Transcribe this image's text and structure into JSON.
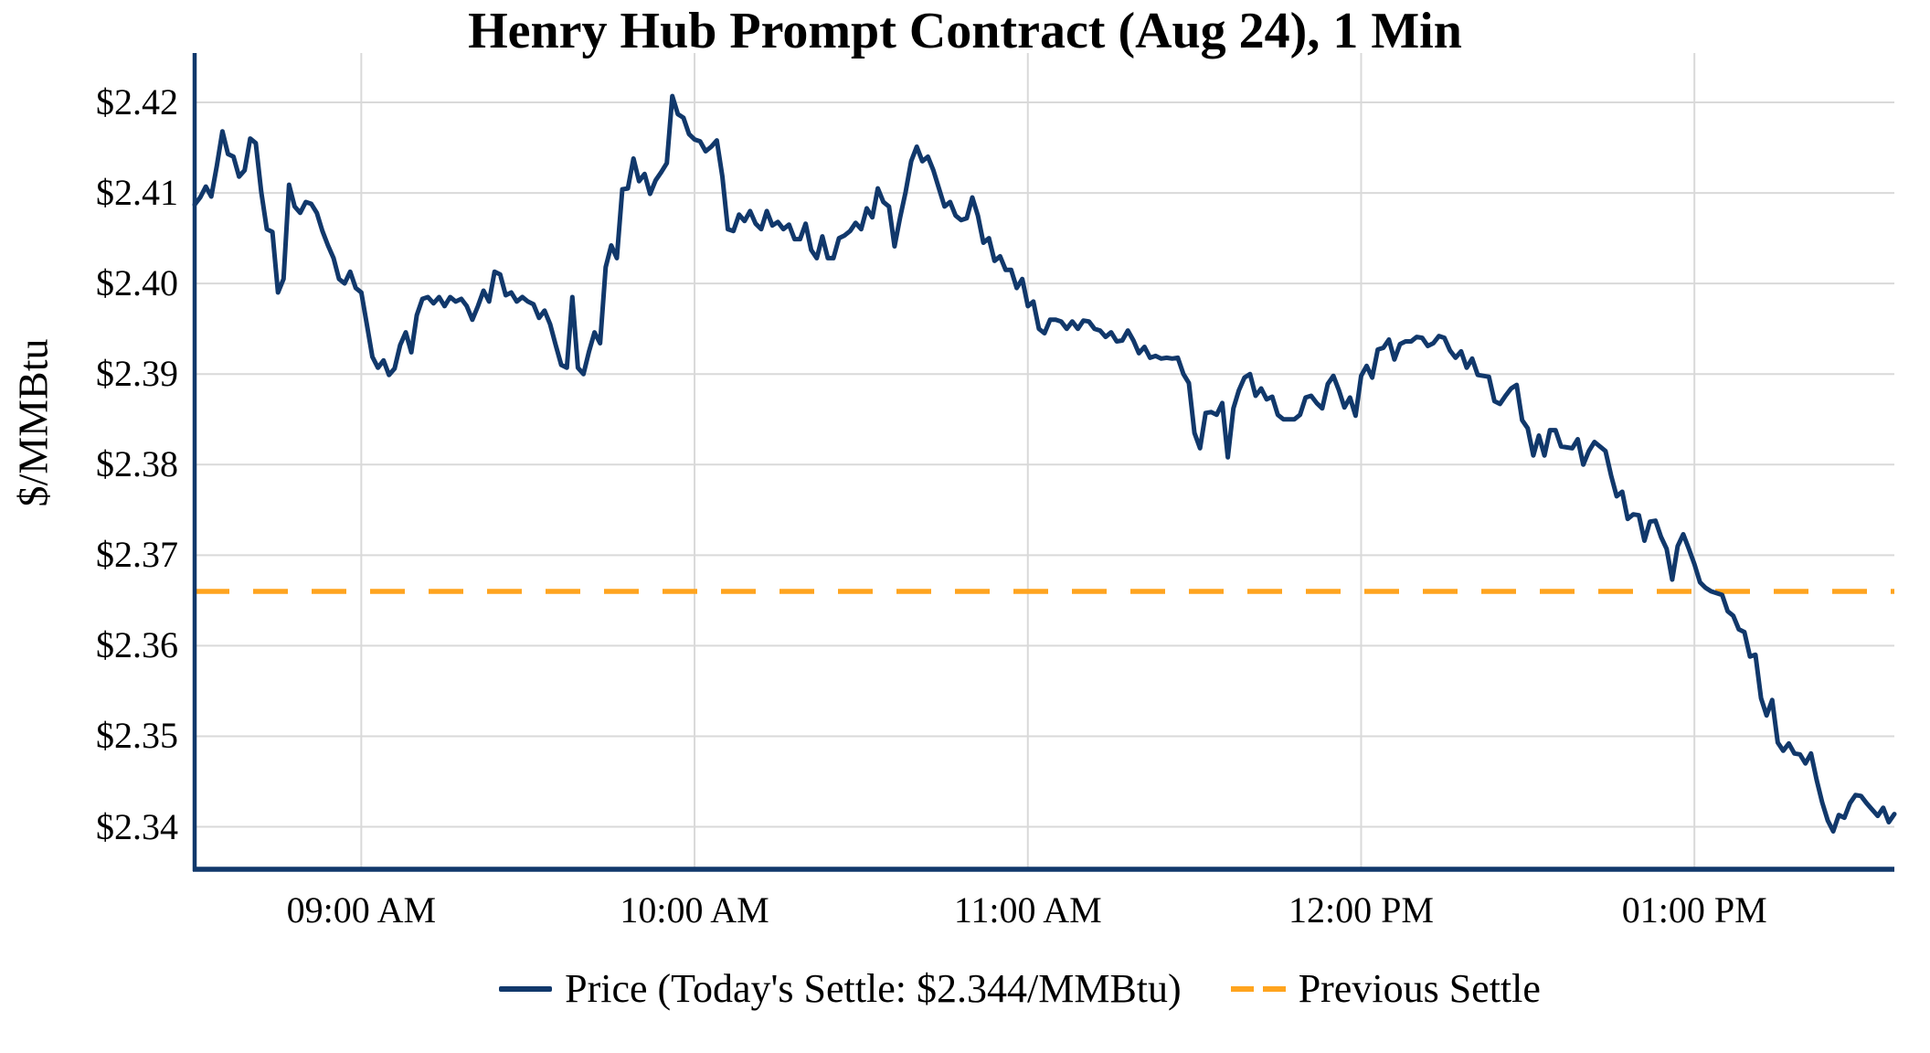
{
  "title": "Henry Hub Prompt Contract (Aug 24), 1 Min",
  "chart_data": {
    "type": "line",
    "title": "Henry Hub Prompt Contract (Aug 24), 1 Min",
    "xlabel": "",
    "ylabel": "$/MMBtu",
    "grid": true,
    "legend_position": "bottom-center",
    "colors": {
      "price_line": "#11386b",
      "previous_settle_line": "#ffa41e",
      "gridline": "#d9d9d9",
      "axis": "#11386b",
      "text": "#000000"
    },
    "y_axis": {
      "min": 2.34,
      "max": 2.42,
      "tick_step": 0.01,
      "ticks": [
        {
          "label": "$2.42",
          "value": 2.42
        },
        {
          "label": "$2.41",
          "value": 2.41
        },
        {
          "label": "$2.40",
          "value": 2.4
        },
        {
          "label": "$2.39",
          "value": 2.39
        },
        {
          "label": "$2.38",
          "value": 2.38
        },
        {
          "label": "$2.37",
          "value": 2.37
        },
        {
          "label": "$2.36",
          "value": 2.36
        },
        {
          "label": "$2.35",
          "value": 2.35
        },
        {
          "label": "$2.34",
          "value": 2.34
        }
      ]
    },
    "x_axis": {
      "interval_minutes": 1,
      "ticks": [
        {
          "label": "09:00 AM",
          "index": 30
        },
        {
          "label": "10:00 AM",
          "index": 90
        },
        {
          "label": "11:00 AM",
          "index": 150
        },
        {
          "label": "12:00 PM",
          "index": 210
        },
        {
          "label": "01:00 PM",
          "index": 270
        }
      ]
    },
    "previous_settle": 2.366,
    "todays_settle": 2.344,
    "series": [
      {
        "name": "Price",
        "values": [
          2.4087,
          2.4095,
          2.4107,
          2.4096,
          2.413,
          2.4168,
          2.4143,
          2.414,
          2.4118,
          2.4125,
          2.416,
          2.4155,
          2.4101,
          2.406,
          2.4057,
          2.399,
          2.4005,
          2.4109,
          2.4085,
          2.4078,
          2.409,
          2.4088,
          2.4078,
          2.4058,
          2.4042,
          2.4028,
          2.4005,
          2.4,
          2.4013,
          2.3995,
          2.399,
          2.3955,
          2.3919,
          2.3907,
          2.3915,
          2.3899,
          2.3906,
          2.3932,
          2.3946,
          2.3924,
          2.3965,
          2.3983,
          2.3985,
          2.3978,
          2.3985,
          2.3975,
          2.3985,
          2.398,
          2.3983,
          2.3975,
          2.396,
          2.3975,
          2.3992,
          2.398,
          2.4013,
          2.401,
          2.3987,
          2.399,
          2.398,
          2.3985,
          2.398,
          2.3977,
          2.3962,
          2.397,
          2.3955,
          2.3932,
          2.391,
          2.3907,
          2.3985,
          2.3907,
          2.39,
          2.3925,
          2.3946,
          2.3934,
          2.4018,
          2.4042,
          2.4028,
          2.4104,
          2.4105,
          2.4138,
          2.4113,
          2.4121,
          2.4099,
          2.4114,
          2.4123,
          2.4133,
          2.4207,
          2.4187,
          2.4183,
          2.4165,
          2.4159,
          2.4157,
          2.4146,
          2.4151,
          2.4158,
          2.4118,
          2.406,
          2.4058,
          2.4076,
          2.4069,
          2.408,
          2.4066,
          2.406,
          2.408,
          2.4064,
          2.4068,
          2.406,
          2.4065,
          2.4049,
          2.4049,
          2.4066,
          2.4037,
          2.4028,
          2.4052,
          2.4028,
          2.4028,
          2.405,
          2.4053,
          2.4058,
          2.4067,
          2.406,
          2.4083,
          2.4073,
          2.4105,
          2.409,
          2.4085,
          2.4041,
          2.4073,
          2.4101,
          2.4135,
          2.4151,
          2.4135,
          2.414,
          2.4125,
          2.4105,
          2.4085,
          2.409,
          2.4075,
          2.407,
          2.4072,
          2.4095,
          2.4075,
          2.4045,
          2.405,
          2.4025,
          2.403,
          2.4015,
          2.4015,
          2.3995,
          2.4005,
          2.3975,
          2.398,
          2.395,
          2.3945,
          2.396,
          2.396,
          2.3958,
          2.395,
          2.3958,
          2.395,
          2.3959,
          2.3958,
          2.395,
          2.3948,
          2.3941,
          2.3946,
          2.3936,
          2.3937,
          2.3948,
          2.3937,
          2.3923,
          2.393,
          2.3918,
          2.392,
          2.3917,
          2.3918,
          2.3917,
          2.3918,
          2.39,
          2.389,
          2.3835,
          2.3818,
          2.3857,
          2.3858,
          2.3855,
          2.3868,
          2.3808,
          2.3862,
          2.3882,
          2.3896,
          2.39,
          2.3876,
          2.3884,
          2.3872,
          2.3875,
          2.3855,
          2.385,
          2.385,
          2.385,
          2.3855,
          2.3874,
          2.3876,
          2.3868,
          2.3862,
          2.3889,
          2.3898,
          2.3882,
          2.3863,
          2.3874,
          2.3854,
          2.3898,
          2.3909,
          2.3896,
          2.3927,
          2.3929,
          2.3938,
          2.3916,
          2.3933,
          2.3936,
          2.3936,
          2.3941,
          2.394,
          2.3931,
          2.3934,
          2.3942,
          2.394,
          2.3926,
          2.3918,
          2.3925,
          2.3907,
          2.3917,
          2.3899,
          2.3898,
          2.3897,
          2.387,
          2.3867,
          2.3876,
          2.3884,
          2.3888,
          2.3849,
          2.384,
          2.381,
          2.3832,
          2.381,
          2.3838,
          2.3838,
          2.382,
          2.3819,
          2.3818,
          2.3828,
          2.38,
          2.3815,
          2.3825,
          2.382,
          2.3815,
          2.3788,
          2.3765,
          2.377,
          2.374,
          2.3745,
          2.3744,
          2.3716,
          2.3737,
          2.3738,
          2.372,
          2.3707,
          2.3673,
          2.371,
          2.3723,
          2.3707,
          2.369,
          2.367,
          2.3664,
          2.366,
          2.3658,
          2.3656,
          2.3638,
          2.3633,
          2.3618,
          2.3615,
          2.3588,
          2.359,
          2.3542,
          2.3523,
          2.354,
          2.3493,
          2.3484,
          2.3492,
          2.3481,
          2.348,
          2.347,
          2.3481,
          2.3452,
          2.3427,
          2.3407,
          2.3395,
          2.3413,
          2.341,
          2.3426,
          2.3435,
          2.3434,
          2.3426,
          2.3419,
          2.3412,
          2.3421,
          2.3405,
          2.3414
        ]
      }
    ]
  },
  "legend": {
    "price_label": "Price (Today's Settle: $2.344/MMBtu)",
    "previous_settle_label": "Previous Settle"
  }
}
